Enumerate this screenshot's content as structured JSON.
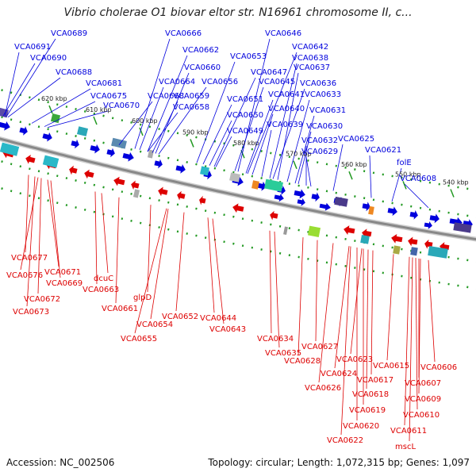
{
  "title": "Vibrio cholerae O1 biovar eltor str. N16961 chromosome II, c...",
  "footer": {
    "accession": "Accession: NC_002506",
    "info": "Topology: circular; Length: 1,072,315 bp; Genes: 1,097"
  },
  "colors": {
    "forward": "#0000dd",
    "reverse": "#dd0000",
    "backbone": "#888888",
    "ticks": "#229922"
  },
  "tick_labels": [
    "620 kbp",
    "610 kbp",
    "600 kbp",
    "590 kbp",
    "580 kbp",
    "570 kbp",
    "560 kbp",
    "550 kbp",
    "540 kbp"
  ],
  "genes_top": [
    "VCA0689",
    "VCA0691",
    "VCA0690",
    "VCA0688",
    "VCA0681",
    "VCA0675",
    "VCA0670",
    "VCA0668",
    "VCA0666",
    "VCA0662",
    "VCA0660",
    "VCA0664",
    "VCA0659",
    "VCA0658",
    "VCA0656",
    "VCA0653",
    "VCA0646",
    "VCA0642",
    "VCA0647",
    "VCA0638",
    "VCA0645",
    "VCA0637",
    "VCA0641",
    "VCA0636",
    "VCA0651",
    "VCA0633",
    "VCA0640",
    "VCA0650",
    "VCA0631",
    "VCA0639",
    "VCA0630",
    "VCA0649",
    "VCA0632",
    "VCA0625",
    "VCA0629",
    "VCA0621",
    "folE",
    "VCA0608"
  ],
  "genes_bottom": [
    "VCA0677",
    "VCA0676",
    "VCA0671",
    "VCA0669",
    "VCA0672",
    "VCA0673",
    "dcuC",
    "VCA0663",
    "VCA0661",
    "glpD",
    "VCA0652",
    "VCA0654",
    "VCA0655",
    "VCA0644",
    "VCA0643",
    "VCA0634",
    "VCA0635",
    "VCA0627",
    "VCA0628",
    "VCA0623",
    "VCA0624",
    "VCA0626",
    "VCA0615",
    "VCA0617",
    "VCA0606",
    "VCA0618",
    "VCA0607",
    "VCA0619",
    "VCA0609",
    "VCA0610",
    "VCA0620",
    "VCA0611",
    "VCA0622",
    "mscL"
  ]
}
